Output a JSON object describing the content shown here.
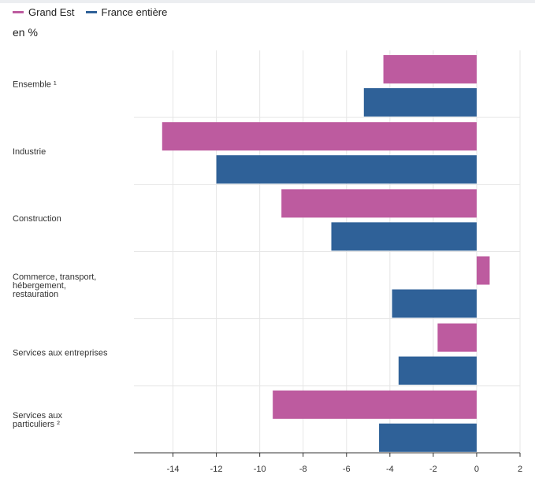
{
  "chart_data": {
    "type": "bar",
    "orientation": "horizontal",
    "unit_label": "en %",
    "legend_placement": "top-left",
    "grid": true,
    "categories": [
      [
        "Ensemble ¹"
      ],
      [
        "Industrie"
      ],
      [
        "Construction"
      ],
      [
        "Commerce, transport,",
        "hébergement,",
        "restauration"
      ],
      [
        "Services aux entreprises"
      ],
      [
        "Services aux",
        "particuliers ²"
      ]
    ],
    "series": [
      {
        "name": "Grand Est",
        "color": "#bd5b9f",
        "values": [
          -4.3,
          -14.5,
          -9.0,
          0.6,
          -1.8,
          -9.4
        ]
      },
      {
        "name": "France entière",
        "color": "#2f6198",
        "values": [
          -5.2,
          -12.0,
          -6.7,
          -3.9,
          -3.6,
          -4.5
        ]
      }
    ],
    "xlim": [
      -15.8,
      2
    ],
    "xticks": [
      -14,
      -12,
      -10,
      -8,
      -6,
      -4,
      -2,
      0,
      2
    ]
  }
}
